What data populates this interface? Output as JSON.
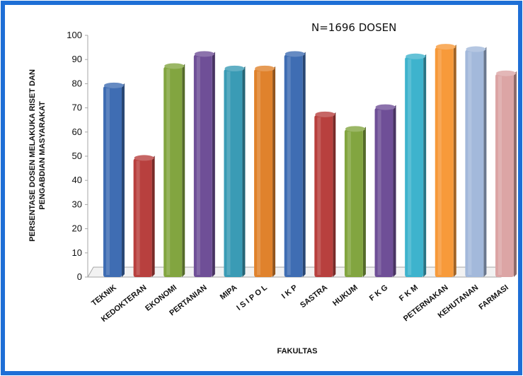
{
  "chart_data": {
    "type": "bar",
    "annotation": "N=1696 DOSEN",
    "xlabel": "FAKULTAS",
    "ylabel_lines": [
      "PERSENTASE DOSEN MELAKUKA RISET DAN",
      "PENGABDIAN MASYARAKAT"
    ],
    "ylim": [
      0,
      100
    ],
    "yticks": [
      "0",
      "10",
      "20",
      "30",
      "40",
      "50",
      "60",
      "70",
      "80",
      "90",
      "100"
    ],
    "grid": false,
    "legend": "none",
    "categories": [
      "TEKNIK",
      "KEDOKTERAN",
      "EKONOMI",
      "PERTANIAN",
      "MIPA",
      "I S I P O L",
      "I K P",
      "SASTRA",
      "HUKUM",
      "F K G",
      "F K M",
      "PETERNAKAN",
      "KEHUTANAN",
      "FARMASI"
    ],
    "values": [
      79,
      49,
      87,
      92,
      86,
      86,
      92,
      67,
      61,
      70,
      91,
      95,
      94,
      84
    ],
    "colors": [
      "#3f6db3",
      "#b8403e",
      "#82a540",
      "#6f4f97",
      "#3a9bb5",
      "#e0822c",
      "#3f6db3",
      "#b8403e",
      "#82a540",
      "#6f4f97",
      "#3eb3cd",
      "#f79a3a",
      "#a3b9db",
      "#dca5a5"
    ]
  },
  "frame": {
    "border_color": "#1e6fd6"
  }
}
